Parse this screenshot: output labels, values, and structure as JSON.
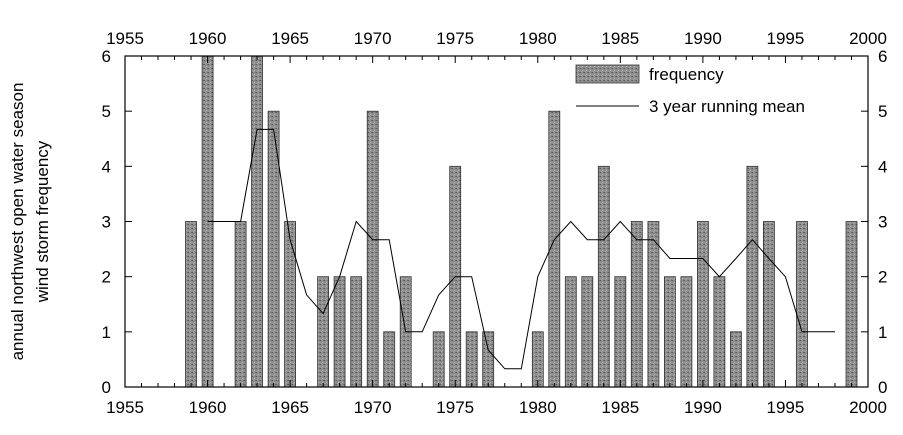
{
  "chart_data": {
    "type": "bar",
    "ylabel": "annual northwest open water season wind storm frequency",
    "ylabel_lines": [
      "annual northwest open water season",
      "wind storm frequency"
    ],
    "xlim": [
      1955,
      2000
    ],
    "ylim": [
      0,
      6
    ],
    "x_ticks": [
      1955,
      1960,
      1965,
      1970,
      1975,
      1980,
      1985,
      1990,
      1995,
      2000
    ],
    "y_ticks": [
      0,
      1,
      2,
      3,
      4,
      5,
      6
    ],
    "grid": false,
    "legend_position": "top-right",
    "series": [
      {
        "name": "frequency",
        "kind": "bar",
        "x": [
          1959,
          1960,
          1962,
          1963,
          1964,
          1965,
          1967,
          1968,
          1969,
          1970,
          1971,
          1972,
          1974,
          1975,
          1976,
          1977,
          1980,
          1981,
          1982,
          1983,
          1984,
          1985,
          1986,
          1987,
          1988,
          1989,
          1990,
          1991,
          1992,
          1993,
          1994,
          1996,
          1999
        ],
        "values": [
          3,
          6,
          3,
          6,
          5,
          3,
          2,
          2,
          2,
          5,
          1,
          2,
          1,
          4,
          1,
          1,
          1,
          5,
          2,
          2,
          4,
          2,
          3,
          3,
          2,
          2,
          3,
          2,
          1,
          4,
          3,
          3,
          3
        ]
      },
      {
        "name": "3 year running mean",
        "kind": "line",
        "x": [
          1960,
          1961,
          1962,
          1963,
          1964,
          1965,
          1966,
          1967,
          1968,
          1969,
          1970,
          1971,
          1972,
          1973,
          1974,
          1975,
          1976,
          1977,
          1978,
          1979,
          1980,
          1981,
          1982,
          1983,
          1984,
          1985,
          1986,
          1987,
          1988,
          1989,
          1990,
          1991,
          1992,
          1993,
          1994,
          1995,
          1996,
          1997,
          1998
        ],
        "values": [
          3,
          3,
          3,
          4.67,
          4.67,
          2.67,
          1.67,
          1.33,
          2,
          3,
          2.67,
          2.67,
          1,
          1,
          1.67,
          2,
          2,
          0.67,
          0.33,
          0.33,
          2,
          2.67,
          3,
          2.67,
          2.67,
          3,
          2.67,
          2.67,
          2.33,
          2.33,
          2.33,
          2,
          2.33,
          2.67,
          2.33,
          2,
          1,
          1,
          1
        ]
      }
    ],
    "colors": {
      "bar_fill": "#8e8e8e",
      "bar_stroke": "#333333",
      "line": "#000000"
    }
  }
}
